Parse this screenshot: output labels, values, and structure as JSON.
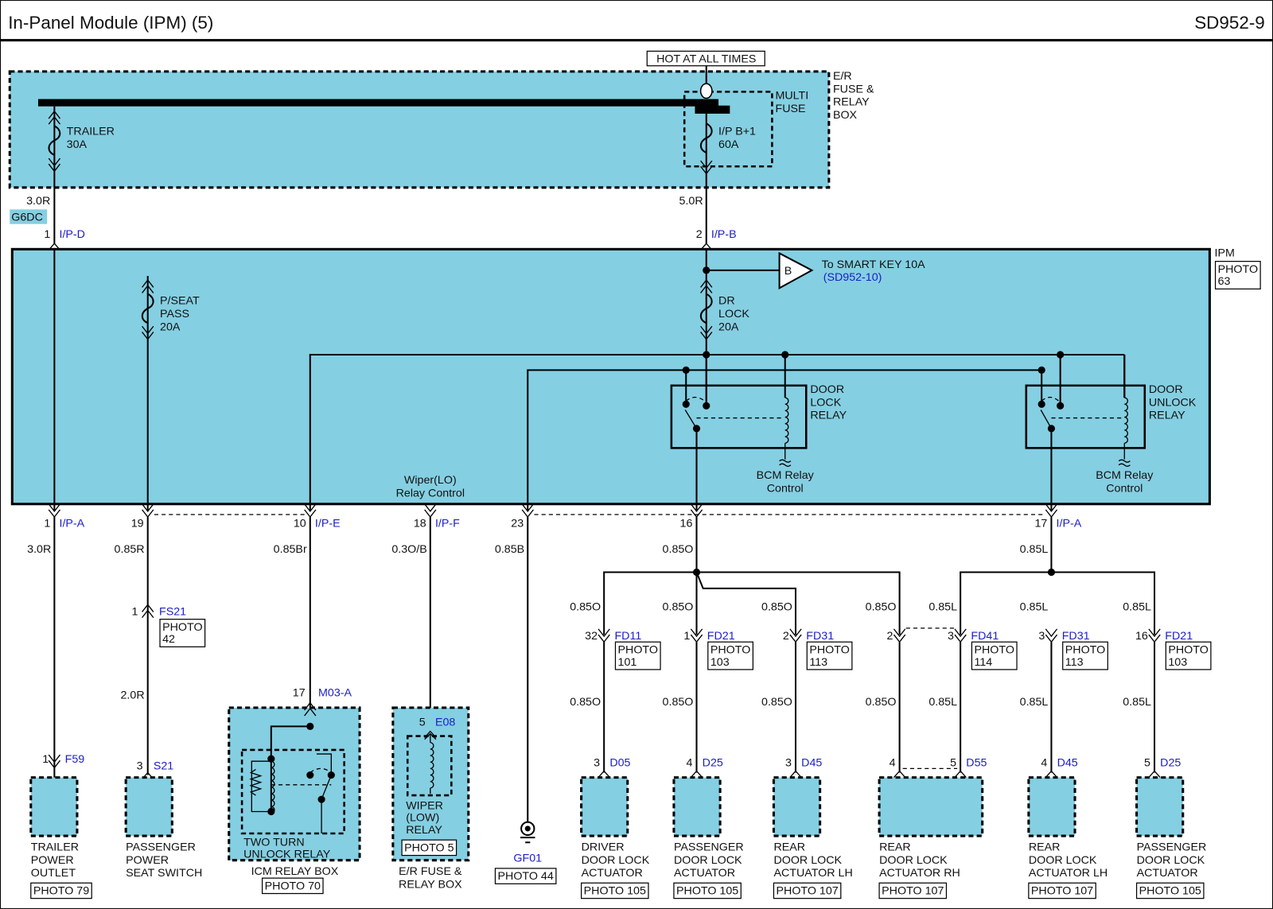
{
  "header": {
    "title": "In-Panel Module (IPM) (5)",
    "code": "SD952-9"
  },
  "colors": {
    "module_fill": "#85CFE2",
    "connector_text": "#1c1cc8",
    "wire": "#000000"
  },
  "er_box": {
    "hot_label": "HOT AT ALL TIMES",
    "label": [
      "E/R",
      "FUSE &",
      "RELAY",
      "BOX"
    ],
    "multi_fuse": [
      "MULTI",
      "FUSE"
    ],
    "trailer_fuse": [
      "TRAILER",
      "30A"
    ],
    "ipb_fuse": [
      "I/P B+1",
      "60A"
    ]
  },
  "feeds": {
    "left_wire": "3.0R",
    "left_tag": "G6DC",
    "left_pin": "1",
    "left_conn": "I/P-D",
    "right_wire": "5.0R",
    "right_pin": "2",
    "right_conn": "I/P-B"
  },
  "ipm": {
    "label": "IPM",
    "photo": [
      "PHOTO",
      "63"
    ],
    "pseat_fuse": [
      "P/SEAT",
      "PASS",
      "20A"
    ],
    "drlock_fuse": [
      "DR",
      "LOCK",
      "20A"
    ],
    "smart_key": {
      "letter": "B",
      "text": "To SMART KEY 10A",
      "ref": "(SD952-10)"
    },
    "door_lock_relay": [
      "DOOR",
      "LOCK",
      "RELAY"
    ],
    "door_unlock_relay": [
      "DOOR",
      "UNLOCK",
      "RELAY"
    ],
    "bcm_control": [
      "BCM Relay",
      "Control"
    ],
    "wiper_control": [
      "Wiper(LO)",
      "Relay Control"
    ]
  },
  "ipm_pins": [
    {
      "pin": "1",
      "conn": "I/P-A",
      "wire": "3.0R"
    },
    {
      "pin": "19",
      "conn": "",
      "wire": "0.85R"
    },
    {
      "pin": "10",
      "conn": "I/P-E",
      "wire": "0.85Br"
    },
    {
      "pin": "18",
      "conn": "I/P-F",
      "wire": "0.3O/B"
    },
    {
      "pin": "23",
      "conn": "",
      "wire": "0.85B"
    },
    {
      "pin": "16",
      "conn": "",
      "wire": "0.85O"
    },
    {
      "pin": "17",
      "conn": "I/P-A",
      "wire": "0.85L"
    }
  ],
  "left_devices": {
    "trailer": {
      "pin": "1",
      "conn": "F59",
      "name": [
        "TRAILER",
        "POWER",
        "OUTLET"
      ],
      "photo": "PHOTO 79"
    },
    "pseat": {
      "inline_pin": "1",
      "inline_conn": "FS21",
      "inline_photo": [
        "PHOTO",
        "42"
      ],
      "wire2": "2.0R",
      "pin": "3",
      "conn": "S21",
      "name": [
        "PASSENGER",
        "POWER",
        "SEAT SWITCH"
      ]
    },
    "icm": {
      "pin": "17",
      "conn": "M03-A",
      "relay": [
        "TWO TURN",
        "UNLOCK RELAY"
      ],
      "name": "ICM RELAY BOX",
      "photo": "PHOTO 70"
    },
    "wiper": {
      "pin": "5",
      "conn": "E08",
      "relay": [
        "WIPER",
        "(LOW)",
        "RELAY"
      ],
      "photo": "PHOTO 5",
      "name": [
        "E/R FUSE &",
        "RELAY BOX"
      ]
    },
    "ground": {
      "id": "GF01",
      "photo": "PHOTO 44"
    }
  },
  "branches": [
    {
      "wire_top": "0.85O",
      "pin": "32",
      "conn": "FD11",
      "photo": [
        "PHOTO",
        "101"
      ],
      "wire_bottom": "0.85O",
      "end_pin": "3",
      "end_conn": "D05"
    },
    {
      "wire_top": "0.85O",
      "pin": "1",
      "conn": "FD21",
      "photo": [
        "PHOTO",
        "103"
      ],
      "wire_bottom": "0.85O",
      "end_pin": "4",
      "end_conn": "D25"
    },
    {
      "wire_top": "0.85O",
      "pin": "2",
      "conn": "FD31",
      "photo": [
        "PHOTO",
        "113"
      ],
      "wire_bottom": "0.85O",
      "end_pin": "3",
      "end_conn": "D45"
    },
    {
      "wire_top": "0.85O",
      "pin": "2",
      "conn": "",
      "photo": [],
      "wire_bottom": "0.85O",
      "end_pin": "4",
      "end_conn": ""
    },
    {
      "wire_top": "0.85L",
      "pin": "3",
      "conn": "FD41",
      "photo": [
        "PHOTO",
        "114"
      ],
      "wire_bottom": "0.85L",
      "end_pin": "5",
      "end_conn": "D55"
    },
    {
      "wire_top": "0.85L",
      "pin": "3",
      "conn": "FD31",
      "photo": [
        "PHOTO",
        "113"
      ],
      "wire_bottom": "0.85L",
      "end_pin": "4",
      "end_conn": "D45"
    },
    {
      "wire_top": "0.85L",
      "pin": "16",
      "conn": "FD21",
      "photo": [
        "PHOTO",
        "103"
      ],
      "wire_bottom": "0.85L",
      "end_pin": "5",
      "end_conn": "D25"
    }
  ],
  "actuators": [
    {
      "name": [
        "DRIVER",
        "DOOR LOCK",
        "ACTUATOR"
      ],
      "photo": "PHOTO 105"
    },
    {
      "name": [
        "PASSENGER",
        "DOOR LOCK",
        "ACTUATOR"
      ],
      "photo": "PHOTO 105"
    },
    {
      "name": [
        "REAR",
        "DOOR LOCK",
        "ACTUATOR LH"
      ],
      "photo": "PHOTO 107"
    },
    {
      "name": [
        "REAR",
        "DOOR LOCK",
        "ACTUATOR RH"
      ],
      "photo": "PHOTO 107"
    },
    {
      "name": [
        "REAR",
        "DOOR LOCK",
        "ACTUATOR LH"
      ],
      "photo": "PHOTO 107"
    },
    {
      "name": [
        "PASSENGER",
        "DOOR LOCK",
        "ACTUATOR"
      ],
      "photo": "PHOTO 105"
    }
  ]
}
